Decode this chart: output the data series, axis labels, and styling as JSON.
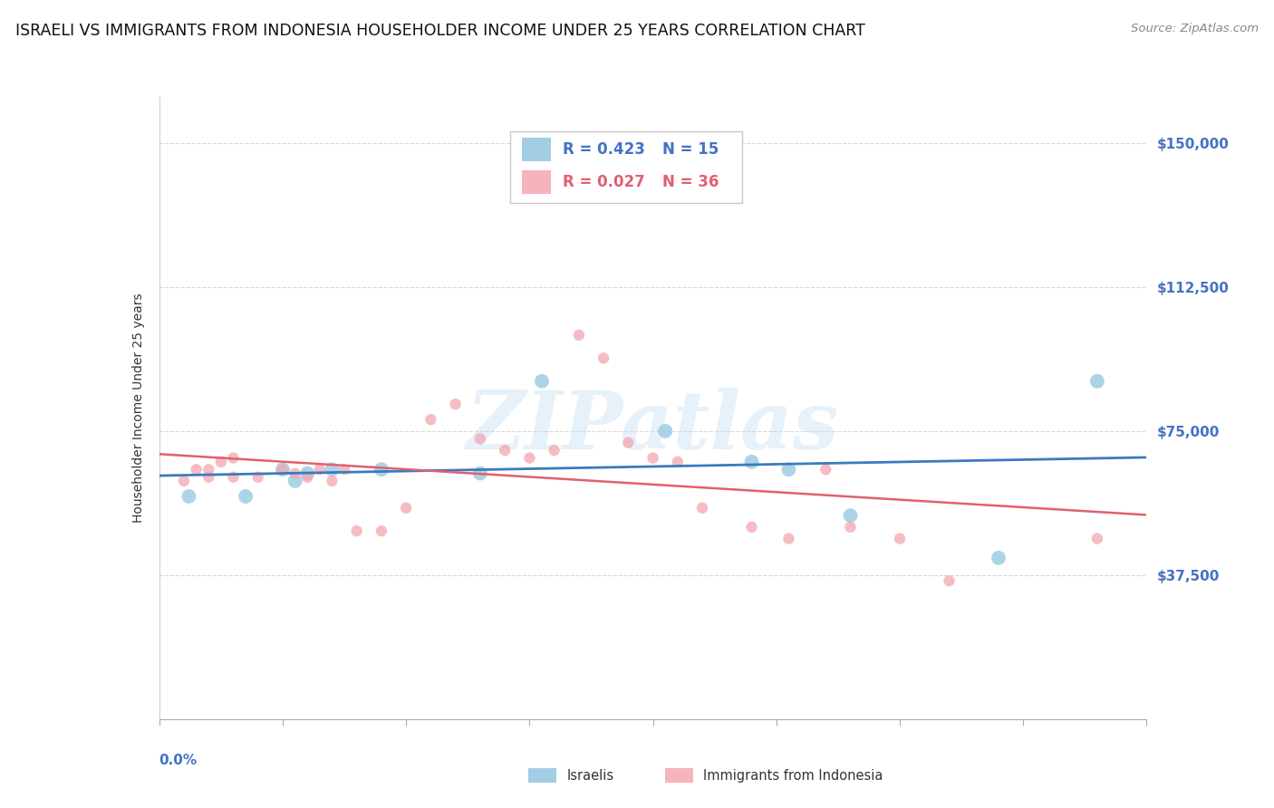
{
  "title": "ISRAELI VS IMMIGRANTS FROM INDONESIA HOUSEHOLDER INCOME UNDER 25 YEARS CORRELATION CHART",
  "source": "Source: ZipAtlas.com",
  "ylabel": "Householder Income Under 25 years",
  "xlim": [
    0.0,
    0.04
  ],
  "ylim": [
    0,
    162000
  ],
  "yticks": [
    0,
    37500,
    75000,
    112500,
    150000
  ],
  "ytick_labels": [
    "",
    "$37,500",
    "$75,000",
    "$112,500",
    "$150,000"
  ],
  "background_color": "#ffffff",
  "grid_color": "#d8d8d8",
  "watermark": "ZIPatlas",
  "israeli_color": "#92c5de",
  "indonesian_color": "#f4a6b0",
  "line1_color": "#3a7bbf",
  "line2_color": "#e06070",
  "title_fontsize": 12.5,
  "source_fontsize": 9.5,
  "axis_label_fontsize": 10,
  "tick_fontsize": 11,
  "legend_fontsize": 12,
  "israeli_x": [
    0.0012,
    0.0035,
    0.005,
    0.0055,
    0.006,
    0.007,
    0.009,
    0.013,
    0.0155,
    0.0205,
    0.024,
    0.0255,
    0.028,
    0.034,
    0.038
  ],
  "israeli_y": [
    58000,
    58000,
    65000,
    62000,
    64000,
    65000,
    65000,
    64000,
    88000,
    75000,
    67000,
    65000,
    53000,
    42000,
    88000
  ],
  "indonesian_x": [
    0.001,
    0.0015,
    0.002,
    0.002,
    0.0025,
    0.003,
    0.003,
    0.004,
    0.005,
    0.0055,
    0.006,
    0.0065,
    0.007,
    0.0075,
    0.008,
    0.009,
    0.01,
    0.011,
    0.012,
    0.013,
    0.014,
    0.015,
    0.016,
    0.017,
    0.018,
    0.019,
    0.02,
    0.021,
    0.022,
    0.024,
    0.0255,
    0.027,
    0.028,
    0.03,
    0.032,
    0.038
  ],
  "indonesian_y": [
    62000,
    65000,
    63000,
    65000,
    67000,
    68000,
    63000,
    63000,
    65000,
    64000,
    63000,
    65000,
    62000,
    65000,
    49000,
    49000,
    55000,
    78000,
    82000,
    73000,
    70000,
    68000,
    70000,
    100000,
    94000,
    72000,
    68000,
    67000,
    55000,
    50000,
    47000,
    65000,
    50000,
    47000,
    36000,
    47000
  ]
}
